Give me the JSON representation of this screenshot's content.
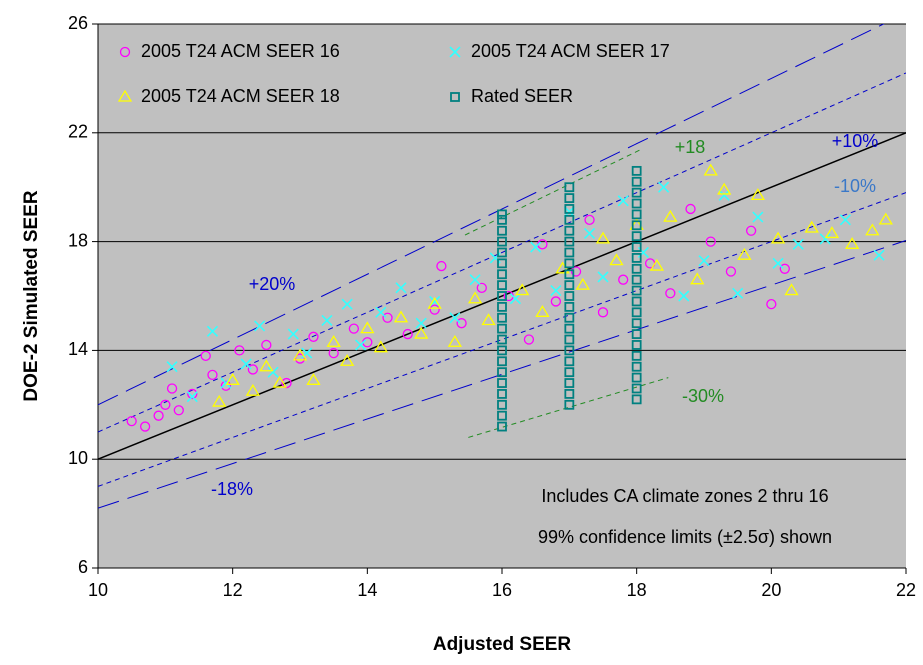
{
  "chart_data": {
    "type": "scatter",
    "x_label": "Adjusted SEER",
    "y_label": "DOE-2 Simulated SEER",
    "xlim": [
      10,
      22
    ],
    "xticks": [
      10,
      12,
      14,
      16,
      18,
      20,
      22
    ],
    "ylim": [
      6,
      26
    ],
    "yticks": [
      6,
      10,
      14,
      18,
      22,
      26
    ],
    "grid": true,
    "background": "#c0c0c0",
    "series": [
      {
        "name": "2005 T24 ACM SEER 16",
        "color": "#ff00ff",
        "marker": "circle",
        "x": [
          10.5,
          10.7,
          10.9,
          11.0,
          11.1,
          11.2,
          11.4,
          11.6,
          11.7,
          11.9,
          12.1,
          12.3,
          12.5,
          12.8,
          13.0,
          13.2,
          13.5,
          13.8,
          14.0,
          14.3,
          14.6,
          15.0,
          15.1,
          15.4,
          15.7,
          16.1,
          16.4,
          16.6,
          16.8,
          17.1,
          17.3,
          17.5,
          17.8,
          18.2,
          18.5,
          18.8,
          19.1,
          19.4,
          19.7,
          20.0,
          20.2
        ],
        "values": [
          11.4,
          11.2,
          11.6,
          12.0,
          12.6,
          11.8,
          12.4,
          13.8,
          13.1,
          12.7,
          14.0,
          13.3,
          14.2,
          12.8,
          13.7,
          14.5,
          13.9,
          14.8,
          14.3,
          15.2,
          14.6,
          15.5,
          17.1,
          15.0,
          16.3,
          16.0,
          14.4,
          17.9,
          15.8,
          16.9,
          18.8,
          15.4,
          16.6,
          17.2,
          16.1,
          19.2,
          18.0,
          16.9,
          18.4,
          15.7,
          17.0
        ]
      },
      {
        "name": "2005 T24 ACM SEER 17",
        "color": "#33ffff",
        "marker": "x",
        "x": [
          11.1,
          11.4,
          11.7,
          11.9,
          12.2,
          12.4,
          12.6,
          12.9,
          13.1,
          13.4,
          13.7,
          13.9,
          14.2,
          14.5,
          14.8,
          15.0,
          15.3,
          15.6,
          15.9,
          16.2,
          16.5,
          16.8,
          17.0,
          17.3,
          17.5,
          17.8,
          18.1,
          18.4,
          18.7,
          19.0,
          19.3,
          19.5,
          19.8,
          20.1,
          20.4,
          20.8,
          21.1,
          21.6
        ],
        "values": [
          13.4,
          12.3,
          14.7,
          12.8,
          13.5,
          14.9,
          13.2,
          14.6,
          13.9,
          15.1,
          15.7,
          14.2,
          15.4,
          16.3,
          15.0,
          15.8,
          15.2,
          16.6,
          17.4,
          15.9,
          17.8,
          16.2,
          19.1,
          18.3,
          16.7,
          19.5,
          17.6,
          20.0,
          16.0,
          17.3,
          19.7,
          16.1,
          18.9,
          17.2,
          17.9,
          18.1,
          18.8,
          17.5
        ]
      },
      {
        "name": "2005 T24 ACM SEER 18",
        "color": "#ffff00",
        "marker": "triangle",
        "x": [
          11.8,
          12.0,
          12.3,
          12.5,
          12.7,
          13.0,
          13.2,
          13.5,
          13.7,
          14.0,
          14.2,
          14.5,
          14.8,
          15.0,
          15.3,
          15.6,
          15.8,
          16.3,
          16.6,
          16.9,
          17.2,
          17.5,
          17.7,
          18.0,
          18.3,
          18.5,
          18.9,
          19.1,
          19.3,
          19.6,
          19.8,
          20.1,
          20.3,
          20.6,
          20.9,
          21.2,
          21.5,
          21.7
        ],
        "values": [
          12.1,
          12.9,
          12.5,
          13.4,
          12.8,
          13.8,
          12.9,
          14.3,
          13.6,
          14.8,
          14.1,
          15.2,
          14.6,
          15.7,
          14.3,
          15.9,
          15.1,
          16.2,
          15.4,
          17.0,
          16.4,
          18.1,
          17.3,
          18.6,
          17.1,
          18.9,
          16.6,
          20.6,
          19.9,
          17.5,
          19.7,
          18.1,
          16.2,
          18.5,
          18.3,
          17.9,
          18.4,
          18.8
        ]
      },
      {
        "name": "Rated SEER",
        "color": "#008080",
        "marker": "square",
        "x": [
          16,
          16,
          16,
          16,
          16,
          16,
          16,
          16,
          16,
          16,
          16,
          16,
          16,
          16,
          16,
          16,
          16,
          16,
          16,
          16,
          16,
          17,
          17,
          17,
          17,
          17,
          17,
          17,
          17,
          17,
          17,
          17,
          17,
          17,
          17,
          17,
          17,
          17,
          17,
          17,
          17,
          17,
          18,
          18,
          18,
          18,
          18,
          18,
          18,
          18,
          18,
          18,
          18,
          18,
          18,
          18,
          18,
          18,
          18,
          18,
          18,
          18,
          18,
          18
        ],
        "values": [
          11.2,
          11.6,
          12.0,
          12.4,
          12.8,
          13.2,
          13.6,
          14.0,
          14.4,
          14.8,
          15.2,
          15.6,
          16.0,
          16.4,
          16.8,
          17.2,
          17.6,
          18.0,
          18.4,
          18.8,
          19.0,
          12.0,
          12.4,
          12.8,
          13.2,
          13.6,
          14.0,
          14.4,
          14.8,
          15.2,
          15.6,
          16.0,
          16.4,
          16.8,
          17.2,
          17.6,
          18.0,
          18.4,
          18.8,
          19.2,
          19.6,
          20.0,
          12.2,
          12.6,
          13.0,
          13.4,
          13.8,
          14.2,
          14.6,
          15.0,
          15.4,
          15.8,
          16.2,
          16.6,
          17.0,
          17.4,
          17.8,
          18.2,
          18.6,
          19.0,
          19.4,
          19.8,
          20.2,
          20.6
        ]
      }
    ],
    "reference_lines": [
      {
        "x": [
          10,
          22
        ],
        "values": [
          10,
          22
        ],
        "color": "#000000",
        "dash": "solid"
      },
      {
        "label": "+10%",
        "x": [
          10,
          22
        ],
        "values": [
          11,
          24.2
        ],
        "color": "#0000cc",
        "dash": "short"
      },
      {
        "label": "-10%",
        "x": [
          10,
          22
        ],
        "values": [
          9,
          19.8
        ],
        "color": "#0000cc",
        "dash": "short",
        "label_color": "#3a78c8"
      },
      {
        "label": "+20%",
        "x": [
          10,
          22
        ],
        "values": [
          12,
          26.4
        ],
        "color": "#0000cc",
        "dash": "long"
      },
      {
        "label": "-18%",
        "x": [
          10,
          22
        ],
        "values": [
          8.2,
          18.04
        ],
        "color": "#0000cc",
        "dash": "long"
      },
      {
        "label": "+18",
        "x": [
          15.45,
          18.05
        ],
        "values": [
          18.24,
          21.37
        ],
        "color": "#228b22",
        "dash": "short"
      },
      {
        "label": "-30%",
        "x": [
          15.5,
          18.47
        ],
        "values": [
          10.8,
          13.0
        ],
        "color": "#228b22",
        "dash": "short"
      }
    ],
    "annotations": [
      "Includes CA climate zones 2 thru 16",
      "99% confidence limits (±2.5σ) shown"
    ]
  }
}
